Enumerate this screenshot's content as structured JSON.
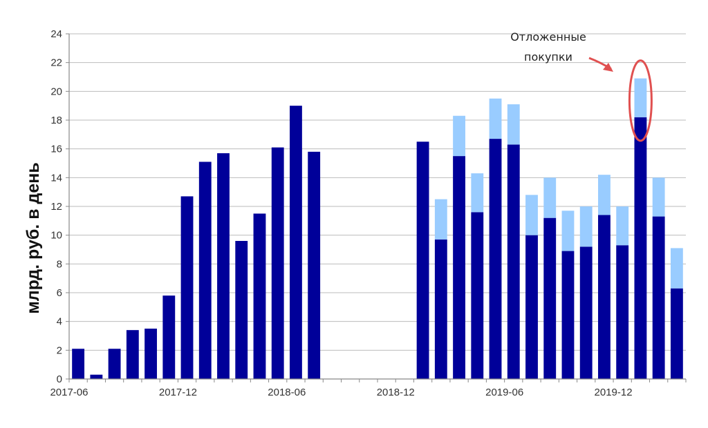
{
  "chart_data": {
    "type": "bar",
    "stacked": true,
    "ylabel": "млрд. руб. в день",
    "ylim": [
      0,
      24
    ],
    "yticks": [
      0,
      2,
      4,
      6,
      8,
      10,
      12,
      14,
      16,
      18,
      20,
      22,
      24
    ],
    "grid": true,
    "categories": [
      "2017-06",
      "2017-07",
      "2017-08",
      "2017-09",
      "2017-10",
      "2017-11",
      "2017-12",
      "2018-01",
      "2018-02",
      "2018-03",
      "2018-04",
      "2018-05",
      "2018-06",
      "2018-07",
      "2018-08",
      "2018-09",
      "2018-10",
      "2018-11",
      "2018-12",
      "2019-01",
      "2019-02",
      "2019-03",
      "2019-04",
      "2019-05",
      "2019-06",
      "2019-07",
      "2019-08",
      "2019-09",
      "2019-10",
      "2019-11",
      "2019-12",
      "2020-01",
      "2020-02",
      "2020-03"
    ],
    "xtick_labels": [
      "2017-06",
      "2017-12",
      "2018-06",
      "2018-12",
      "2019-06",
      "2019-12"
    ],
    "series": [
      {
        "color": "#000099",
        "values": [
          2.1,
          0.3,
          2.1,
          3.4,
          3.5,
          5.8,
          12.7,
          15.1,
          15.7,
          9.6,
          11.5,
          16.1,
          19.0,
          15.8,
          null,
          null,
          null,
          null,
          null,
          16.5,
          9.7,
          15.5,
          11.6,
          16.7,
          16.3,
          10.0,
          11.2,
          8.9,
          9.2,
          11.4,
          9.3,
          18.2,
          11.3,
          6.3
        ]
      },
      {
        "color": "#99CCFF",
        "values": [
          0,
          0,
          0,
          0,
          0,
          0,
          0,
          0,
          0,
          0,
          0,
          0,
          0,
          0,
          null,
          null,
          null,
          null,
          null,
          0,
          2.8,
          2.8,
          2.7,
          2.8,
          2.8,
          2.8,
          2.8,
          2.8,
          2.8,
          2.8,
          2.7,
          2.7,
          2.7,
          2.8
        ]
      }
    ],
    "annotation": {
      "text_lines": [
        "Отложенные",
        "покупки"
      ],
      "target_category": "2020-01",
      "color": "#E05050"
    }
  }
}
